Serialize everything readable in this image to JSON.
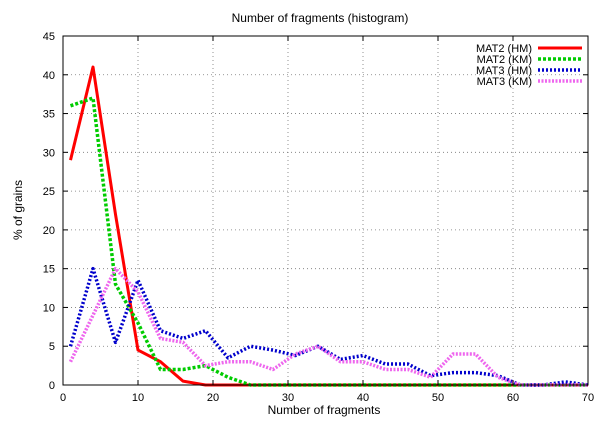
{
  "chart_data": {
    "type": "line",
    "title": "Number of fragments (histogram)",
    "xlabel": "Number of fragments",
    "ylabel": "% of grains",
    "xlim": [
      0,
      70
    ],
    "ylim": [
      0,
      45
    ],
    "xticks": [
      0,
      10,
      20,
      30,
      40,
      50,
      60,
      70
    ],
    "yticks": [
      0,
      5,
      10,
      15,
      20,
      25,
      30,
      35,
      40,
      45
    ],
    "grid": true,
    "legend_position": "top-right",
    "series": [
      {
        "name": "MAT2 (HM)",
        "color": "#ff0000",
        "style": "solid",
        "x": [
          1,
          4,
          7,
          10,
          13,
          16,
          19,
          22,
          25,
          28,
          31,
          34,
          37,
          40,
          43,
          46,
          49,
          52,
          55,
          58,
          61,
          64,
          67,
          70
        ],
        "y": [
          29,
          41,
          22,
          4.5,
          3,
          0.5,
          0,
          0,
          0,
          0,
          0,
          0,
          0,
          0,
          0,
          0,
          0,
          0,
          0,
          0,
          0,
          0,
          0,
          0
        ]
      },
      {
        "name": "MAT2 (KM)",
        "color": "#00cc00",
        "style": "dashed",
        "x": [
          1,
          4,
          7,
          10,
          13,
          16,
          19,
          22,
          25,
          28,
          31,
          34,
          37,
          40,
          43,
          46,
          49,
          52,
          55,
          58,
          61,
          64,
          67,
          70
        ],
        "y": [
          36,
          37,
          13,
          8,
          2,
          2,
          2.5,
          1,
          0,
          0,
          0,
          0,
          0,
          0,
          0,
          0,
          0,
          0,
          0,
          0,
          0,
          0,
          0,
          0
        ]
      },
      {
        "name": "MAT3 (HM)",
        "color": "#0000cc",
        "style": "dotted",
        "x": [
          1,
          4,
          7,
          10,
          13,
          16,
          19,
          22,
          25,
          28,
          31,
          34,
          37,
          40,
          43,
          46,
          49,
          52,
          55,
          58,
          61,
          64,
          67,
          70
        ],
        "y": [
          5,
          15,
          5.5,
          13.5,
          7,
          6,
          7,
          3.5,
          5,
          4.5,
          3.8,
          5,
          3.3,
          3.8,
          2.7,
          2.7,
          1.2,
          1.6,
          1.6,
          1.2,
          0,
          0,
          0.4,
          0
        ]
      },
      {
        "name": "MAT3 (KM)",
        "color": "#ee66ee",
        "style": "dash-dot",
        "x": [
          1,
          4,
          7,
          10,
          13,
          16,
          19,
          22,
          25,
          28,
          31,
          34,
          37,
          40,
          43,
          46,
          49,
          52,
          55,
          58,
          61,
          64,
          67,
          70
        ],
        "y": [
          3,
          9,
          15,
          12,
          6,
          5.5,
          2.5,
          3,
          3,
          2,
          4,
          5,
          3,
          3,
          2,
          2,
          1,
          4,
          4,
          1,
          0,
          0,
          0,
          0
        ]
      }
    ]
  }
}
